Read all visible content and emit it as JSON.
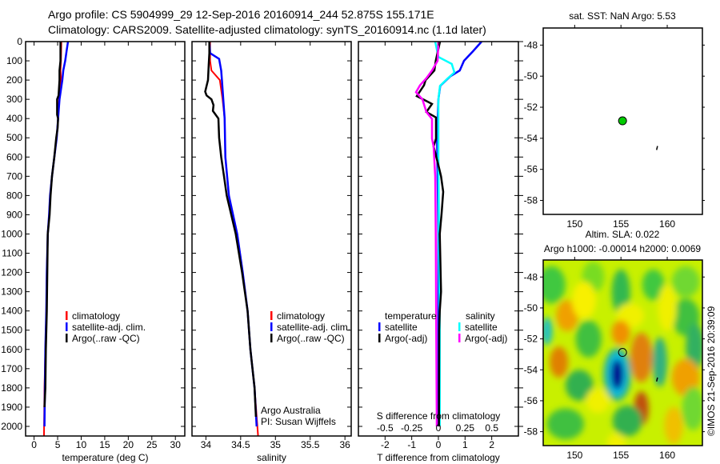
{
  "header": {
    "title_line1": "Argo profile: CS 5904999_29 12-Sep-2016 20160914_244 52.875S 155.171E",
    "title_line2": "Climatology: CARS2009. Satellite-adjusted climatology: synTS_20160914.nc (1.1d later)"
  },
  "chart_data": [
    {
      "id": "temperature",
      "type": "line",
      "xlabel": "temperature (deg C)",
      "ylabel": "",
      "xlim": [
        -1.8,
        32
      ],
      "ylim": [
        2050,
        0
      ],
      "xticks": [
        0,
        5,
        10,
        15,
        20,
        25,
        30
      ],
      "yticks": [
        0,
        100,
        200,
        300,
        400,
        500,
        600,
        700,
        800,
        900,
        1000,
        1100,
        1200,
        1300,
        1400,
        1500,
        1600,
        1700,
        1800,
        1900,
        2000
      ],
      "legend": [
        "climatology",
        "satellite-adj. clim.",
        "Argo(..raw -QC)"
      ],
      "series": [
        {
          "name": "climatology",
          "color": "#ff0000",
          "depth": [
            0,
            100,
            150,
            200,
            300,
            400,
            500,
            600,
            700,
            800,
            900,
            1000,
            1200,
            1400,
            1600,
            1800,
            2050
          ],
          "values": [
            5.8,
            5.7,
            5.6,
            5.7,
            5.3,
            5.1,
            4.8,
            4.3,
            3.8,
            3.4,
            3.2,
            2.9,
            2.7,
            2.6,
            2.4,
            2.2,
            2.1
          ]
        },
        {
          "name": "satellite-adj. clim.",
          "color": "#0000ff",
          "depth": [
            0,
            50,
            100,
            150,
            200,
            300,
            400,
            500,
            600,
            700,
            800,
            900,
            1000,
            1200,
            1400,
            1600,
            1800,
            2000
          ],
          "values": [
            7.2,
            6.9,
            6.6,
            6.2,
            6.0,
            5.4,
            5.1,
            4.8,
            4.3,
            3.8,
            3.4,
            3.2,
            2.9,
            2.7,
            2.6,
            2.4,
            2.3,
            2.2
          ]
        },
        {
          "name": "Argo(..raw -QC)",
          "color": "#000000",
          "depth": [
            0,
            100,
            150,
            200,
            280,
            300,
            380,
            400,
            450,
            500,
            600,
            700,
            800,
            900,
            1000,
            1200,
            1400,
            1600,
            1800,
            1900
          ],
          "values": [
            5.6,
            5.6,
            5.4,
            5.4,
            5.2,
            4.9,
            4.9,
            5.1,
            5.0,
            4.7,
            4.3,
            3.8,
            3.5,
            3.3,
            2.9,
            2.8,
            2.7,
            2.5,
            2.4,
            2.2
          ]
        }
      ]
    },
    {
      "id": "salinity",
      "type": "line",
      "xlabel": "salinity",
      "xlim": [
        33.8,
        36.09
      ],
      "ylim": [
        2050,
        0
      ],
      "xticks": [
        34,
        34.5,
        35,
        35.5,
        36
      ],
      "xticklabels": [
        "34",
        "34.5",
        "35",
        "35.5",
        "36"
      ],
      "legend": [
        "climatology",
        "satellite-adj. clim.",
        "Argo(..raw -QC)"
      ],
      "annotation": [
        "Argo Australia",
        "PI: Susan Wijffels"
      ],
      "series": [
        {
          "name": "climatology",
          "color": "#ff0000",
          "depth": [
            0,
            100,
            150,
            200,
            300,
            400,
            600,
            800,
            1000,
            1200,
            1400,
            1600,
            1800,
            2050
          ],
          "values": [
            34.06,
            34.06,
            34.08,
            34.2,
            34.24,
            34.27,
            34.28,
            34.33,
            34.45,
            34.53,
            34.6,
            34.64,
            34.7,
            34.75
          ]
        },
        {
          "name": "satellite-adj. clim.",
          "color": "#0000ff",
          "depth": [
            0,
            60,
            90,
            150,
            200,
            300,
            400,
            600,
            800,
            1000,
            1200,
            1400,
            1600,
            1800,
            2000
          ],
          "values": [
            34.05,
            34.06,
            34.19,
            34.22,
            34.23,
            34.25,
            34.27,
            34.28,
            34.33,
            34.45,
            34.53,
            34.6,
            34.64,
            34.7,
            34.73
          ]
        },
        {
          "name": "Argo(..raw -QC)",
          "color": "#000000",
          "depth": [
            0,
            60,
            120,
            200,
            260,
            280,
            300,
            330,
            360,
            400,
            500,
            600,
            700,
            800,
            1000,
            1200,
            1400,
            1600,
            1800,
            1950
          ],
          "values": [
            34.05,
            34.05,
            34.04,
            34.03,
            33.99,
            34.01,
            34.08,
            34.11,
            34.1,
            34.18,
            34.19,
            34.22,
            34.26,
            34.3,
            34.43,
            34.52,
            34.6,
            34.64,
            34.7,
            34.72
          ]
        }
      ]
    },
    {
      "id": "difference",
      "type": "line",
      "xlabel": "T difference from climatology",
      "x2label": "S difference from climatology",
      "xlim": [
        -3,
        3
      ],
      "x2lim": [
        -0.75,
        0.75
      ],
      "ylim": [
        2050,
        0
      ],
      "xticks": [
        -2,
        -1,
        0,
        1,
        2
      ],
      "x2ticks": [
        -0.5,
        -0.25,
        0,
        0.25,
        0.5
      ],
      "x2ticklabels": [
        "-0.5",
        "-0.25",
        "0",
        "0.25",
        "0.5"
      ],
      "legend": {
        "temperature_title": "temperature",
        "salinity_title": "salinity",
        "t_sat": "satellite",
        "t_argo": "Argo(-adj)",
        "s_sat": "satellite",
        "s_argo": "Argo(-adj)"
      },
      "series": [
        {
          "name": "T satellite",
          "color": "#0000ff",
          "depth": [
            0,
            50,
            100,
            150,
            180,
            230,
            300,
            500,
            1000,
            1500,
            2000
          ],
          "values": [
            1.62,
            1.3,
            0.96,
            0.8,
            0.45,
            0.07,
            0.0,
            -0.05,
            0.0,
            0.0,
            0.0
          ]
        },
        {
          "name": "S satellite",
          "color": "#00ffff",
          "depth": [
            0,
            80,
            116,
            160,
            190,
            230,
            300,
            600,
            1000,
            1500,
            2000
          ],
          "values": [
            -0.12,
            0.0,
            0.5,
            0.6,
            0.36,
            0.06,
            0.0,
            0.0,
            0.02,
            0.05,
            0.05
          ]
        },
        {
          "name": "T Argo(-adj)",
          "color": "#000000",
          "depth": [
            0,
            100,
            150,
            200,
            227,
            283,
            324,
            366,
            394,
            504,
            545,
            643,
            700,
            781,
            893,
            1000,
            1300,
            1400,
            1500,
            2000
          ],
          "values": [
            0.06,
            -0.1,
            -0.15,
            -0.48,
            -0.54,
            -0.81,
            -0.24,
            -0.45,
            -0.09,
            -0.09,
            -0.18,
            0.0,
            0.1,
            0.18,
            0.12,
            0.05,
            0.1,
            0.05,
            0.03,
            0.02
          ]
        },
        {
          "name": "S Argo(-adj)",
          "color": "#ff00ff",
          "depth": [
            0,
            100,
            150,
            190,
            227,
            263,
            300,
            366,
            402,
            504,
            545,
            700,
            1000,
            1500,
            2000
          ],
          "values": [
            0.0,
            -0.03,
            -0.24,
            -0.45,
            -0.69,
            -0.84,
            -0.6,
            -0.45,
            -0.24,
            -0.24,
            -0.18,
            -0.12,
            -0.1,
            -0.08,
            -0.06
          ]
        }
      ]
    },
    {
      "id": "sst-map",
      "type": "scatter",
      "title": "sat. SST: NaN Argo: 5.53",
      "xlim": [
        146.6,
        163.8
      ],
      "ylim": [
        -58.9,
        -46.9
      ],
      "xticks": [
        150,
        155,
        160
      ],
      "yticks": [
        -48,
        -50,
        -52,
        -54,
        -56,
        -58
      ],
      "points": [
        {
          "lon": 155.171,
          "lat": -52.875,
          "color": "#00cc00"
        }
      ],
      "track": [
        [
          158.85,
          -54.75
        ],
        [
          158.95,
          -54.5
        ]
      ]
    },
    {
      "id": "sla-map",
      "type": "heatmap",
      "title_line1": "Altim. SLA: 0.022",
      "title_line2": "Argo h1000: -0.00014 h2000: 0.0069",
      "xlim": [
        146.6,
        163.8
      ],
      "ylim": [
        -58.9,
        -46.9
      ],
      "xticks": [
        150,
        155,
        160
      ],
      "yticks": [
        -48,
        -50,
        -52,
        -54,
        -56,
        -58
      ],
      "points": [
        {
          "lon": 155.171,
          "lat": -52.875
        }
      ],
      "track": [
        [
          158.85,
          -54.75
        ],
        [
          158.95,
          -54.5
        ]
      ],
      "credit": "©IMOS 21-Sep-2016 20:39:09"
    }
  ]
}
